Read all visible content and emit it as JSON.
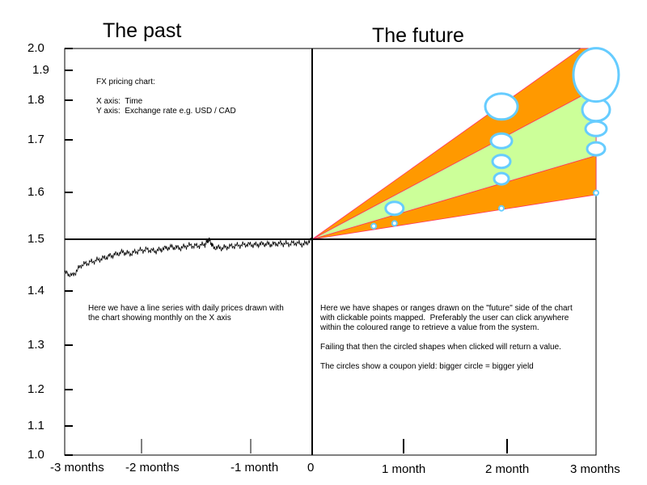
{
  "chart_data": {
    "type": "line",
    "titles": {
      "past": "The past",
      "future": "The future"
    },
    "ylim": [
      1.0,
      2.0
    ],
    "y_ticks": [
      "1.0",
      "1.1",
      "1.2",
      "1.3",
      "1.4",
      "1.5",
      "1.6",
      "1.7",
      "1.8",
      "1.9",
      "2.0"
    ],
    "x_ticks": [
      "-3 months",
      "-2 months",
      "-1 month",
      "0",
      "1 month",
      "2 month",
      "3 months"
    ],
    "xlim_months": [
      -3,
      3
    ],
    "history_series": {
      "description_unit": "months",
      "x": [
        -3.0,
        -2.9,
        -2.8,
        -2.7,
        -2.6,
        -2.5,
        -2.4,
        -2.3,
        -2.2,
        -2.1,
        -2.0,
        -1.9,
        -1.8,
        -1.7,
        -1.6,
        -1.5,
        -1.4,
        -1.3,
        -1.25,
        -1.2,
        -1.1,
        -1.0,
        -0.9,
        -0.8,
        -0.7,
        -0.6,
        -0.5,
        -0.4,
        -0.3,
        -0.2,
        -0.1,
        0.0
      ],
      "y": [
        1.435,
        1.43,
        1.45,
        1.455,
        1.46,
        1.465,
        1.47,
        1.475,
        1.472,
        1.478,
        1.48,
        1.477,
        1.482,
        1.485,
        1.483,
        1.488,
        1.487,
        1.49,
        1.5,
        1.485,
        1.483,
        1.486,
        1.488,
        1.49,
        1.489,
        1.491,
        1.49,
        1.492,
        1.491,
        1.493,
        1.49,
        1.5
      ]
    },
    "forecast_bands": {
      "origin": [
        0,
        1.5
      ],
      "at_x": 3,
      "outer_top": 2.05,
      "inner_top": 1.84,
      "inner_bottom": 1.67,
      "outer_bottom": 1.595,
      "outer_color": "#ff9900",
      "inner_color": "#ccff99"
    },
    "yield_circles": [
      {
        "x": 0.65,
        "y": 1.528,
        "size": 1
      },
      {
        "x": 0.87,
        "y": 1.534,
        "size": 1
      },
      {
        "x": 0.87,
        "y": 1.566,
        "size": 3
      },
      {
        "x": 2.0,
        "y": 1.566,
        "size": 1
      },
      {
        "x": 2.0,
        "y": 1.626,
        "size": 2
      },
      {
        "x": 2.0,
        "y": 1.659,
        "size": 3
      },
      {
        "x": 2.0,
        "y": 1.698,
        "size": 4
      },
      {
        "x": 2.0,
        "y": 1.784,
        "size": 6
      },
      {
        "x": 3.0,
        "y": 1.599,
        "size": 1
      },
      {
        "x": 3.0,
        "y": 1.683,
        "size": 3
      },
      {
        "x": 3.0,
        "y": 1.728,
        "size": 4
      },
      {
        "x": 3.0,
        "y": 1.776,
        "size": 5
      },
      {
        "x": 3.0,
        "y": 1.885,
        "size": 7
      }
    ],
    "circle_color": "#66ccff"
  },
  "notes": {
    "axes_info": "FX pricing chart:\n\nX axis:  Time\nY axis:  Exchange rate e.g. USD / CAD",
    "past_note": "Here we have a line series with daily prices drawn with\nthe chart showing monthly on the X axis",
    "future_note": "Here we have shapes or ranges drawn on the \"future\" side of the chart\nwith clickable points mapped.  Preferably the user can click anywhere\nwithin the coloured range to retrieve a value from the system.\n\nFailing that then the circled shapes when clicked will return a value.\n\nThe circles show a coupon yield: bigger circle = bigger yield"
  }
}
